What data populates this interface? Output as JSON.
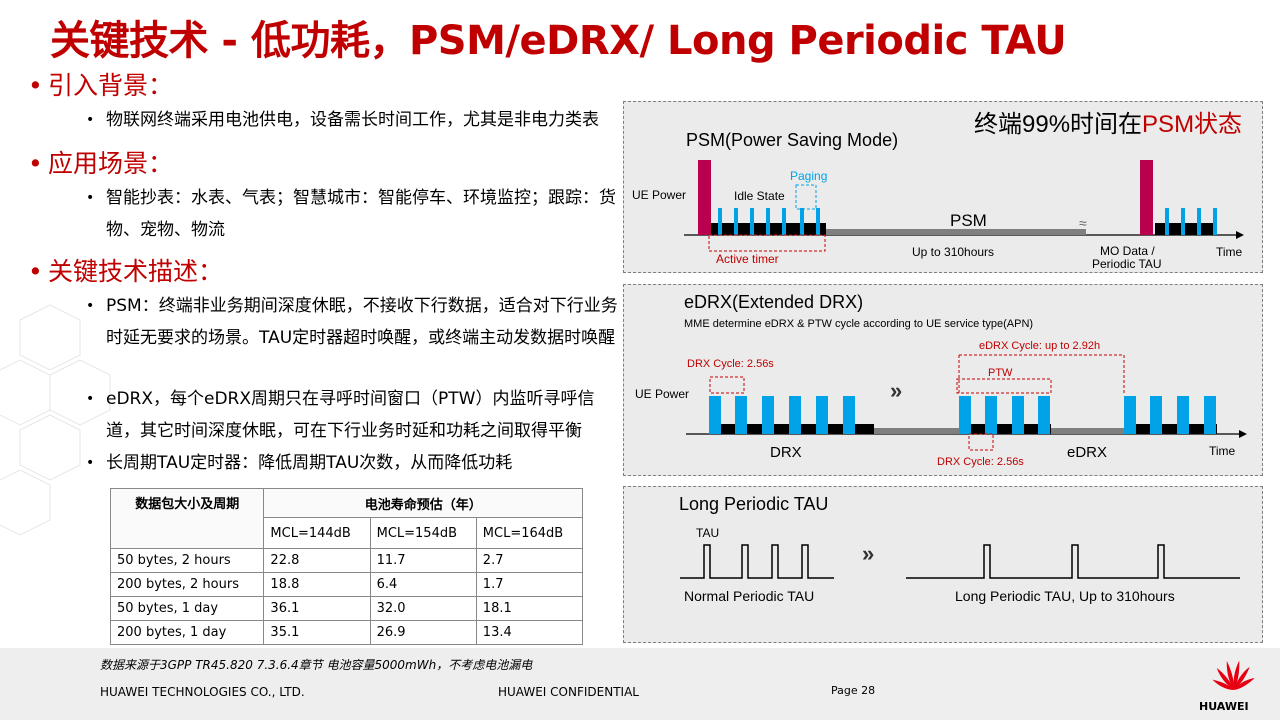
{
  "title": "关键技术 - 低功耗，PSM/eDRX/ Long Periodic TAU",
  "sections": [
    {
      "heading": "引入背景：",
      "bullets": [
        "物联网终端采用电池供电，设备需长时间工作，尤其是非电力类表"
      ]
    },
    {
      "heading": "应用场景：",
      "bullets": [
        "智能抄表：水表、气表；智慧城市：智能停车、环境监控；跟踪：货物、宠物、物流"
      ]
    },
    {
      "heading": "关键技术描述：",
      "bullets": [
        "PSM：终端非业务期间深度休眠，不接收下行数据，适合对下行业务时延无要求的场景。TAU定时器超时唤醒，或终端主动发数据时唤醒",
        "eDRX，每个eDRX周期只在寻呼时间窗口（PTW）内监听寻呼信道，其它时间深度休眠，可在下行业务时延和功耗之间取得平衡",
        "长周期TAU定时器：降低周期TAU次数，从而降低功耗"
      ]
    }
  ],
  "table": {
    "header_col": "数据包大小及周期",
    "header_group": "电池寿命预估（年）",
    "sub_headers": [
      "MCL=144dB",
      "MCL=154dB",
      "MCL=164dB"
    ],
    "rows": [
      [
        "50 bytes, 2 hours",
        "22.8",
        "11.7",
        "2.7"
      ],
      [
        "200 bytes, 2 hours",
        "18.8",
        "6.4",
        "1.7"
      ],
      [
        "50 bytes, 1 day",
        "36.1",
        "32.0",
        "18.1"
      ],
      [
        "200 bytes, 1 day",
        "35.1",
        "26.9",
        "13.4"
      ]
    ]
  },
  "footnote": "数据来源于3GPP TR45.820 7.3.6.4章节 电池容量5000mWh，不考虑电池漏电",
  "footer": {
    "company": "HUAWEI TECHNOLOGIES CO., LTD.",
    "confidential": "HUAWEI CONFIDENTIAL",
    "page": "Page 28",
    "logo_text": "HUAWEI"
  },
  "psm": {
    "callout_prefix": "终端99%时间在",
    "callout_highlight": "PSM状态",
    "title": "PSM(Power Saving Mode)",
    "ue_power": "UE Power",
    "idle_state": "Idle State",
    "paging": "Paging",
    "psm": "PSM",
    "up_to": "Up to 310hours",
    "mo_data": "MO Data /",
    "periodic_tau": "Periodic TAU",
    "time": "Time",
    "active_timer": "Active  timer"
  },
  "edrx": {
    "title": "eDRX(Extended DRX)",
    "subtitle": "MME determine eDRX & PTW cycle according to UE service type(APN)",
    "edrx_cycle": "eDRX Cycle: up to 2.92h",
    "drx_cycle": "DRX Cycle: 2.56s",
    "ptw": "PTW",
    "ue_power": "UE Power",
    "drx_cycle_bottom": "DRX Cycle: 2.56s",
    "drx": "DRX",
    "edrx_label": "eDRX",
    "time": "Time"
  },
  "tau": {
    "title": "Long Periodic TAU",
    "tau": "TAU",
    "normal": "Normal Periodic TAU",
    "long": "Long Periodic TAU, Up to 310hours"
  },
  "colors": {
    "accent": "#c00000",
    "pulse_blue": "#00a2e8",
    "psm_bar": "#b8004f",
    "panel_bg": "#ebebeb"
  }
}
